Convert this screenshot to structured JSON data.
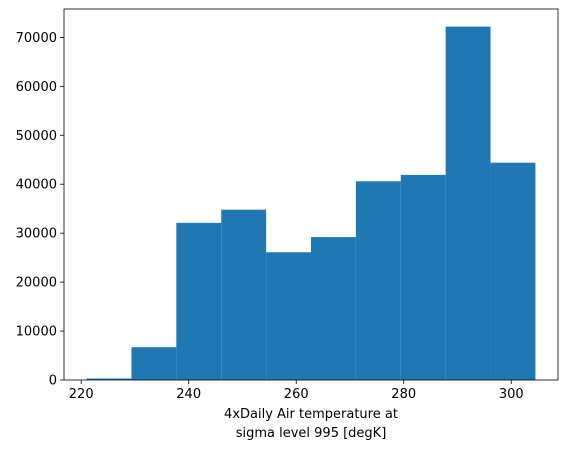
{
  "chart_data": {
    "type": "bar",
    "subtype": "histogram",
    "bin_edges": [
      221.0,
      229.35,
      237.7,
      246.05,
      254.4,
      262.75,
      271.1,
      279.45,
      287.8,
      296.15,
      304.5
    ],
    "counts": [
      300,
      6700,
      32100,
      34800,
      26100,
      29200,
      40600,
      41900,
      72200,
      44400
    ],
    "xlabel": "4xDaily Air temperature at\nsigma level 995 [degK]",
    "xlabel_lines": [
      "4xDaily Air temperature at",
      "sigma level 995 [degK]"
    ],
    "ylabel": "",
    "title": "",
    "xlim": [
      216.8,
      308.7
    ],
    "ylim": [
      0,
      75800
    ],
    "xticks": [
      220,
      240,
      260,
      280,
      300
    ],
    "yticks": [
      0,
      10000,
      20000,
      30000,
      40000,
      50000,
      60000,
      70000
    ],
    "grid": false,
    "colors": {
      "bar": "#1f77b4",
      "axis": "#000000",
      "background": "#ffffff"
    }
  }
}
